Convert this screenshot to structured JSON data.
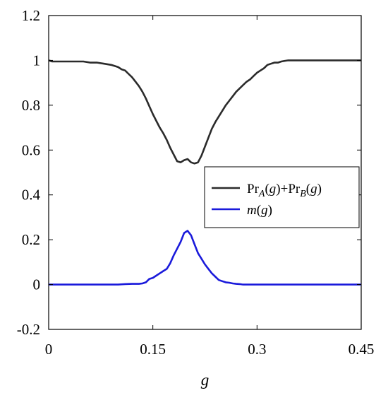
{
  "chart_data": {
    "type": "line",
    "xlabel": "g",
    "ylabel": "",
    "title": "",
    "xlim": [
      0,
      0.45
    ],
    "ylim": [
      -0.2,
      1.2
    ],
    "xticks": [
      0,
      0.15,
      0.3,
      0.45
    ],
    "xtick_labels": [
      "0",
      "0.15",
      "0.3",
      "0.45"
    ],
    "yticks": [
      -0.2,
      0,
      0.2,
      0.4,
      0.6,
      0.8,
      1,
      1.2
    ],
    "ytick_labels": [
      "-0.2",
      "0",
      "0.2",
      "0.4",
      "0.6",
      "0.8",
      "1",
      "1.2"
    ],
    "grid": false,
    "legend_position": "right",
    "series": [
      {
        "name": "PrA(g)+PrB(g)",
        "color": "#2b2b2b",
        "legend_parts": [
          {
            "text": "Pr",
            "style": "normal"
          },
          {
            "text": "A",
            "style": "sub"
          },
          {
            "text": "(",
            "style": "normal"
          },
          {
            "text": "g",
            "style": "italic"
          },
          {
            "text": ")+Pr",
            "style": "normal"
          },
          {
            "text": "B",
            "style": "sub"
          },
          {
            "text": "(",
            "style": "normal"
          },
          {
            "text": "g",
            "style": "italic"
          },
          {
            "text": ")",
            "style": "normal"
          }
        ],
        "x": [
          0,
          0.005,
          0.01,
          0.02,
          0.03,
          0.04,
          0.05,
          0.06,
          0.07,
          0.08,
          0.09,
          0.1,
          0.105,
          0.11,
          0.115,
          0.12,
          0.125,
          0.13,
          0.135,
          0.14,
          0.145,
          0.15,
          0.155,
          0.16,
          0.165,
          0.17,
          0.175,
          0.18,
          0.185,
          0.19,
          0.195,
          0.2,
          0.205,
          0.21,
          0.215,
          0.22,
          0.225,
          0.23,
          0.235,
          0.24,
          0.245,
          0.25,
          0.255,
          0.26,
          0.265,
          0.27,
          0.275,
          0.28,
          0.285,
          0.29,
          0.295,
          0.3,
          0.305,
          0.31,
          0.315,
          0.32,
          0.325,
          0.33,
          0.335,
          0.34,
          0.345,
          0.35,
          0.36,
          0.37,
          0.38,
          0.39,
          0.4,
          0.42,
          0.45
        ],
        "y": [
          1.0,
          0.995,
          0.995,
          0.995,
          0.995,
          0.995,
          0.995,
          0.99,
          0.99,
          0.985,
          0.98,
          0.97,
          0.96,
          0.955,
          0.94,
          0.925,
          0.905,
          0.885,
          0.86,
          0.83,
          0.795,
          0.76,
          0.73,
          0.7,
          0.675,
          0.645,
          0.61,
          0.58,
          0.55,
          0.545,
          0.555,
          0.56,
          0.545,
          0.54,
          0.545,
          0.575,
          0.615,
          0.655,
          0.695,
          0.725,
          0.75,
          0.775,
          0.8,
          0.82,
          0.84,
          0.86,
          0.875,
          0.89,
          0.905,
          0.915,
          0.93,
          0.945,
          0.955,
          0.965,
          0.98,
          0.985,
          0.99,
          0.99,
          0.995,
          0.998,
          1.0,
          1.0,
          1.0,
          1.0,
          1.0,
          1.0,
          1.0,
          1.0,
          1.0
        ]
      },
      {
        "name": "m(g)",
        "color": "#1a1adb",
        "legend_parts": [
          {
            "text": "m",
            "style": "italic"
          },
          {
            "text": "(",
            "style": "normal"
          },
          {
            "text": "g",
            "style": "italic"
          },
          {
            "text": ")",
            "style": "normal"
          }
        ],
        "x": [
          0,
          0.05,
          0.1,
          0.11,
          0.12,
          0.13,
          0.135,
          0.14,
          0.145,
          0.15,
          0.155,
          0.16,
          0.165,
          0.17,
          0.175,
          0.18,
          0.185,
          0.19,
          0.195,
          0.2,
          0.205,
          0.21,
          0.215,
          0.22,
          0.225,
          0.23,
          0.235,
          0.24,
          0.245,
          0.25,
          0.255,
          0.26,
          0.265,
          0.27,
          0.275,
          0.28,
          0.29,
          0.3,
          0.35,
          0.4,
          0.45
        ],
        "y": [
          0,
          0,
          0,
          0.002,
          0.003,
          0.003,
          0.005,
          0.01,
          0.025,
          0.03,
          0.04,
          0.05,
          0.06,
          0.07,
          0.095,
          0.13,
          0.16,
          0.19,
          0.23,
          0.24,
          0.22,
          0.18,
          0.14,
          0.115,
          0.09,
          0.07,
          0.05,
          0.035,
          0.02,
          0.015,
          0.01,
          0.008,
          0.005,
          0.003,
          0.002,
          0,
          0,
          0,
          0,
          0,
          0
        ]
      }
    ]
  }
}
